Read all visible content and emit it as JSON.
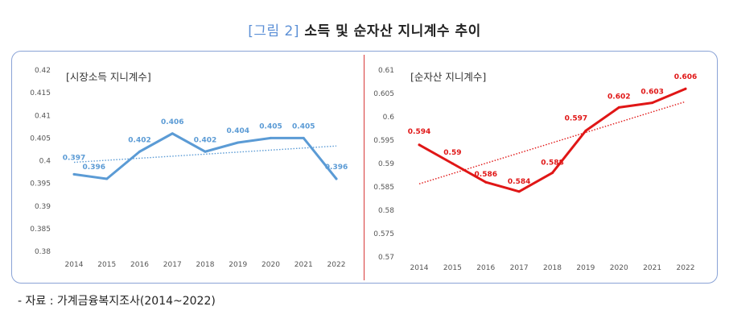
{
  "title": {
    "tag": "[그림 2]",
    "text": "소득 및 순자산 지니계수 추이"
  },
  "source": "- 자료 : 가계금융복지조사(2014~2022)",
  "colors": {
    "left_series": "#5b9bd5",
    "right_series": "#e01616",
    "frame": "#8aa3d6"
  },
  "chart_data": [
    {
      "type": "line",
      "series_label": "[시장소득 지니계수]",
      "x": [
        "2014",
        "2015",
        "2016",
        "2017",
        "2018",
        "2019",
        "2020",
        "2021",
        "2022"
      ],
      "values": [
        0.397,
        0.396,
        0.402,
        0.406,
        0.402,
        0.404,
        0.405,
        0.405,
        0.396
      ],
      "data_labels": [
        "0.397",
        "0.396",
        "0.402",
        "0.406",
        "0.402",
        "0.404",
        "0.405",
        "0.405",
        "0.396"
      ],
      "ylim": [
        0.38,
        0.42
      ],
      "yticks": [
        "0.38",
        "0.385",
        "0.39",
        "0.395",
        "0.4",
        "0.405",
        "0.41",
        "0.415",
        "0.42"
      ],
      "trendline": "linear, dotted",
      "color": "#5b9bd5"
    },
    {
      "type": "line",
      "series_label": "[순자산 지니계수]",
      "x": [
        "2014",
        "2015",
        "2016",
        "2017",
        "2018",
        "2019",
        "2020",
        "2021",
        "2022"
      ],
      "values": [
        0.594,
        0.59,
        0.586,
        0.584,
        0.588,
        0.597,
        0.602,
        0.603,
        0.606
      ],
      "data_labels": [
        "0.594",
        "0.59",
        "0.586",
        "0.584",
        "0.588",
        "0.597",
        "0.602",
        "0.603",
        "0.606"
      ],
      "ylim": [
        0.57,
        0.61
      ],
      "yticks": [
        "0.57",
        "0.575",
        "0.58",
        "0.585",
        "0.59",
        "0.595",
        "0.6",
        "0.605",
        "0.61"
      ],
      "trendline": "linear, dotted",
      "color": "#e01616"
    }
  ]
}
